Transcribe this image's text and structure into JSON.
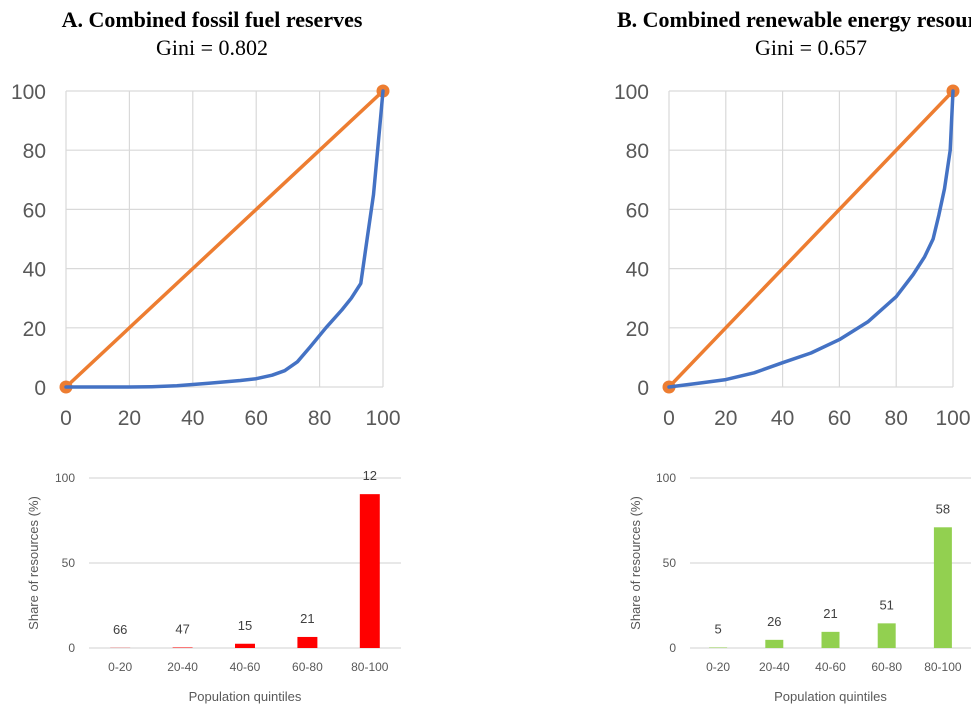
{
  "chart_data": [
    {
      "type": "line",
      "panel": "A",
      "title": "A. Combined fossil fuel reserves",
      "subtitle": "Gini = 0.802",
      "xlim": [
        0,
        100
      ],
      "ylim": [
        0,
        100
      ],
      "xticks": [
        "0",
        "20",
        "40",
        "60",
        "80",
        "100"
      ],
      "yticks": [
        "0",
        "20",
        "40",
        "60",
        "80",
        "100"
      ],
      "grid": true,
      "series": [
        {
          "color": "#ed7d31",
          "points": [
            [
              0,
              0
            ],
            [
              100,
              100
            ]
          ],
          "markers": true
        },
        {
          "color": "#4472c4",
          "points": [
            [
              0,
              0
            ],
            [
              20,
              0
            ],
            [
              27,
              0.1
            ],
            [
              35,
              0.4
            ],
            [
              45,
              1.3
            ],
            [
              55,
              2.2
            ],
            [
              60,
              2.8
            ],
            [
              65,
              4.0
            ],
            [
              69,
              5.5
            ],
            [
              73,
              8.5
            ],
            [
              77,
              13.5
            ],
            [
              82,
              20
            ],
            [
              87,
              26
            ],
            [
              90,
              30
            ],
            [
              93,
              35
            ],
            [
              95,
              50
            ],
            [
              97,
              65
            ],
            [
              99,
              88
            ],
            [
              100,
              100
            ]
          ]
        }
      ]
    },
    {
      "type": "line",
      "panel": "B",
      "title": "B. Combined renewable energy resources",
      "subtitle": "Gini = 0.657",
      "xlim": [
        0,
        100
      ],
      "ylim": [
        0,
        100
      ],
      "xticks": [
        "0",
        "20",
        "40",
        "60",
        "80",
        "100"
      ],
      "yticks": [
        "0",
        "20",
        "40",
        "60",
        "80",
        "100"
      ],
      "grid": true,
      "series": [
        {
          "color": "#ed7d31",
          "points": [
            [
              0,
              0
            ],
            [
              100,
              100
            ]
          ],
          "markers": true
        },
        {
          "color": "#4472c4",
          "points": [
            [
              0,
              0
            ],
            [
              10,
              1.2
            ],
            [
              20,
              2.5
            ],
            [
              30,
              4.8
            ],
            [
              40,
              8.2
            ],
            [
              50,
              11.5
            ],
            [
              60,
              16
            ],
            [
              70,
              22
            ],
            [
              80,
              30.5
            ],
            [
              86,
              38
            ],
            [
              90,
              44
            ],
            [
              93,
              50
            ],
            [
              95,
              58
            ],
            [
              97,
              67
            ],
            [
              99,
              80
            ],
            [
              100,
              100
            ]
          ]
        }
      ]
    },
    {
      "type": "bar",
      "panel": "A-bars",
      "color": "#ff0000",
      "categories": [
        "0-20",
        "20-40",
        "40-60",
        "60-80",
        "80-100"
      ],
      "values": [
        0.1,
        0.3,
        2.5,
        6.5,
        90.5
      ],
      "data_labels": [
        "66",
        "47",
        "15",
        "21",
        "12"
      ],
      "ylabel": "Share of resources (%)",
      "xlabel": "Population quintiles",
      "ylim": [
        0,
        100
      ],
      "yticks": [
        "0",
        "50",
        "100"
      ]
    },
    {
      "type": "bar",
      "panel": "B-bars",
      "color": "#92d050",
      "categories": [
        "0-20",
        "20-40",
        "40-60",
        "60-80",
        "80-100"
      ],
      "values": [
        0.3,
        4.8,
        9.5,
        14.5,
        71
      ],
      "data_labels": [
        "5",
        "26",
        "21",
        "51",
        "58"
      ],
      "ylabel": "Share of resources (%)",
      "xlabel": "Population quintiles",
      "ylim": [
        0,
        100
      ],
      "yticks": [
        "0",
        "50",
        "100"
      ]
    }
  ]
}
